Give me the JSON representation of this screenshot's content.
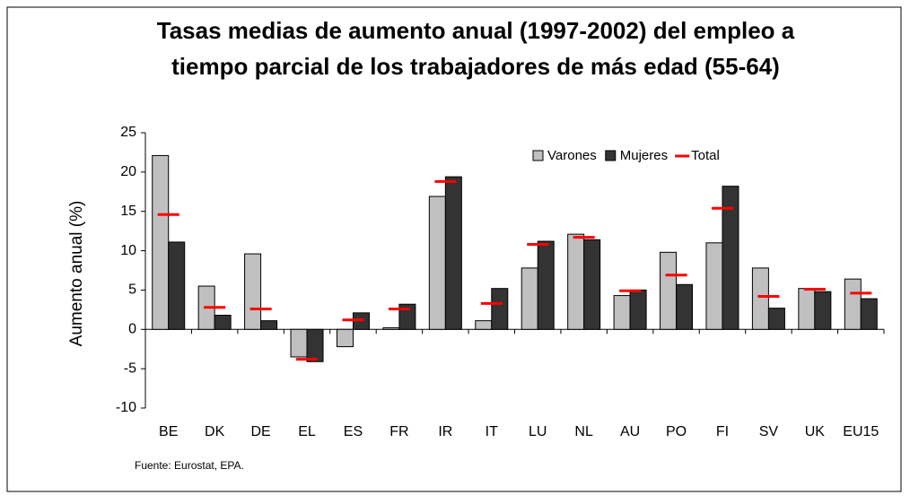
{
  "chart_data": {
    "type": "bar",
    "title": [
      "Tasas medias de aumento anual (1997-2002) del empleo a",
      "tiempo parcial de los trabajadores de más edad (55-64)"
    ],
    "y_label": "Aumento anual (%)",
    "source": "Fuente: Eurostat, EPA.",
    "categories": [
      "BE",
      "DK",
      "DE",
      "EL",
      "ES",
      "FR",
      "IR",
      "IT",
      "LU",
      "NL",
      "AU",
      "PO",
      "FI",
      "SV",
      "UK",
      "EU15"
    ],
    "series": [
      {
        "name": "Varones",
        "color": "#c0c0c0",
        "values": [
          22.1,
          5.5,
          9.6,
          -3.5,
          -2.2,
          0.2,
          16.9,
          1.1,
          7.8,
          12.1,
          4.3,
          9.8,
          11.0,
          7.8,
          5.2,
          6.4
        ]
      },
      {
        "name": "Mujeres",
        "color": "#333333",
        "values": [
          11.1,
          1.8,
          1.1,
          -4.1,
          2.1,
          3.2,
          19.4,
          5.2,
          11.2,
          11.4,
          5.0,
          5.7,
          18.2,
          2.7,
          4.8,
          3.9
        ]
      },
      {
        "name": "Total",
        "color": "#ff0000",
        "marker": "dash",
        "values": [
          14.6,
          2.8,
          2.6,
          -3.8,
          1.2,
          2.6,
          18.8,
          3.3,
          10.8,
          11.7,
          4.9,
          6.9,
          15.4,
          4.2,
          5.1,
          4.6
        ]
      }
    ],
    "ylim": [
      -10,
      25
    ],
    "yticks": [
      -10,
      -5,
      0,
      5,
      10,
      15,
      20,
      25
    ],
    "grid": false
  }
}
